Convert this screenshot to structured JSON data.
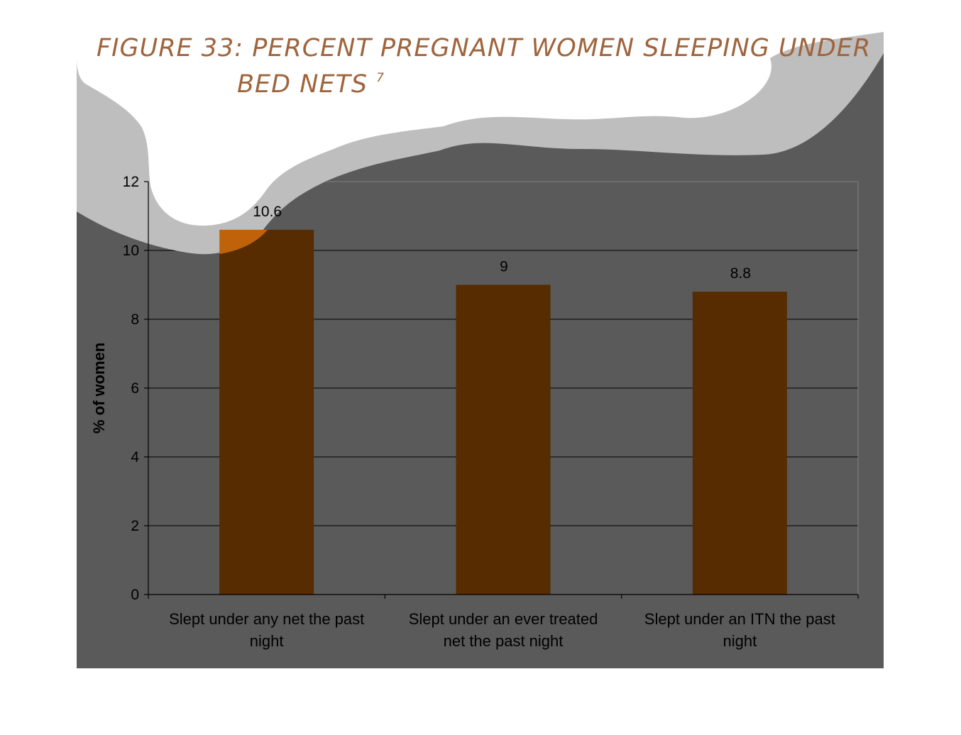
{
  "figure": {
    "title_line1": "FIGURE 33: PERCENT PREGNANT WOMEN SLEEPING UNDER",
    "title_line2": "BED NETS",
    "title_superscript": "7"
  },
  "colors": {
    "background": "#5A5A5A",
    "bar": "#562C00",
    "bar_highlight": "#C0620A",
    "cloud_fill": "#FFFFFF",
    "cloud_shadow": "#BEBEBE",
    "title": "#A0643C"
  },
  "chart_data": {
    "type": "bar",
    "categories": [
      [
        "Slept under any net the past",
        "night"
      ],
      [
        "Slept under an ever treated",
        "net the past night"
      ],
      [
        "Slept under an ITN the past",
        "night"
      ]
    ],
    "values": [
      10.6,
      9,
      8.8
    ],
    "data_labels": [
      "10.6",
      "9",
      "8.8"
    ],
    "ylabel": "% of women",
    "ylim": [
      0,
      12
    ],
    "yticks": [
      0,
      2,
      4,
      6,
      8,
      10,
      12
    ],
    "grid": true,
    "legend": "none"
  }
}
